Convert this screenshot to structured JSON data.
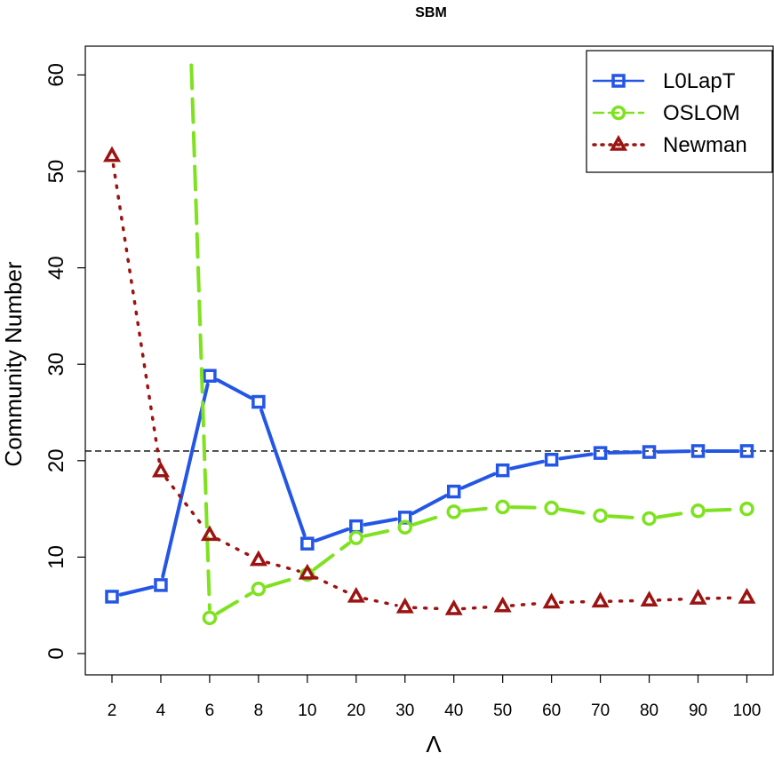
{
  "chart_data": {
    "type": "line",
    "title": "SBM",
    "xlabel": "Λ",
    "ylabel": "Community Number",
    "categories": [
      "2",
      "4",
      "6",
      "8",
      "10",
      "20",
      "30",
      "40",
      "50",
      "60",
      "70",
      "80",
      "90",
      "100"
    ],
    "yticks": [
      "0",
      "10",
      "20",
      "30",
      "40",
      "50",
      "60"
    ],
    "ylim": [
      0,
      60
    ],
    "reference_line": 21,
    "legend_position": "top-right",
    "grid": false,
    "series": [
      {
        "name": "L0LapT",
        "color": "#2456e6",
        "line_style": "solid",
        "marker": "square",
        "values": [
          5.9,
          7.1,
          28.8,
          26.1,
          11.4,
          13.2,
          14.1,
          16.8,
          19.0,
          20.1,
          20.8,
          20.9,
          21.0,
          21.0
        ]
      },
      {
        "name": "OSLOM",
        "color": "#7ee21e",
        "line_style": "dashed",
        "marker": "circle",
        "values": [
          null,
          null,
          3.7,
          6.7,
          8.2,
          12.0,
          13.1,
          14.7,
          15.2,
          15.1,
          14.3,
          14.0,
          14.8,
          15.0
        ],
        "extra_segment": {
          "from_x": 5.25,
          "from_y": 61,
          "to_x": 6,
          "to_y": 3.7
        }
      },
      {
        "name": "Newman",
        "color": "#9b1412",
        "line_style": "dotted",
        "marker": "triangle",
        "values": [
          51.6,
          18.9,
          12.3,
          9.7,
          8.3,
          5.9,
          4.8,
          4.6,
          4.9,
          5.3,
          5.4,
          5.5,
          5.7,
          5.8
        ]
      }
    ]
  }
}
